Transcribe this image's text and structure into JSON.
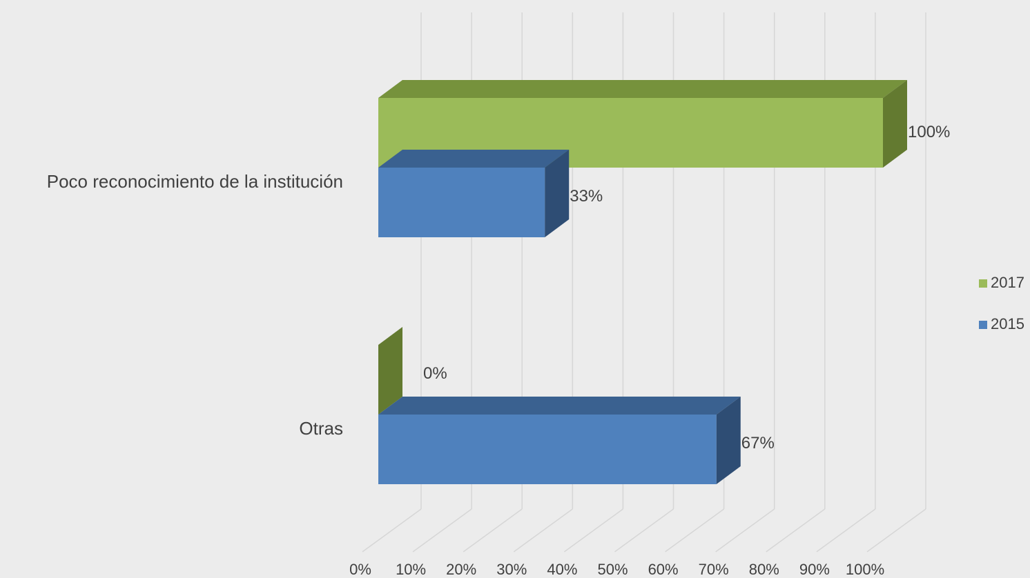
{
  "chart_data": {
    "type": "bar3d",
    "categories": [
      "Poco reconocimiento de la institución",
      "Otras"
    ],
    "series": [
      {
        "name": "2017",
        "color": "#9bbb59",
        "top_color": "#76923c",
        "side_color": "#637a30",
        "values": [
          100,
          0
        ],
        "value_labels": [
          "100%",
          "0%"
        ]
      },
      {
        "name": "2015",
        "color": "#4f81bd",
        "top_color": "#3a6190",
        "side_color": "#2e4d74",
        "values": [
          33,
          67
        ],
        "value_labels": [
          "33%",
          "67%"
        ]
      }
    ],
    "xlim": [
      0,
      100
    ],
    "xticks": [
      {
        "value": 0,
        "label": "0%"
      },
      {
        "value": 10,
        "label": "10%"
      },
      {
        "value": 20,
        "label": "20%"
      },
      {
        "value": 30,
        "label": "30%"
      },
      {
        "value": 40,
        "label": "40%"
      },
      {
        "value": 50,
        "label": "50%"
      },
      {
        "value": 60,
        "label": "60%"
      },
      {
        "value": 70,
        "label": "70%"
      },
      {
        "value": 80,
        "label": "80%"
      },
      {
        "value": 90,
        "label": "90%"
      },
      {
        "value": 100,
        "label": "100%"
      }
    ],
    "grid": true,
    "legend": "right"
  }
}
